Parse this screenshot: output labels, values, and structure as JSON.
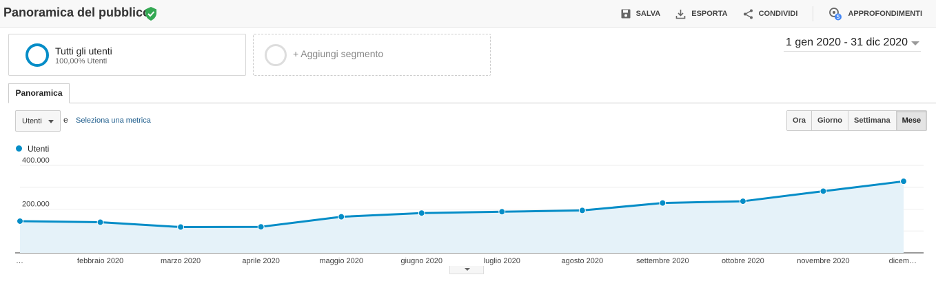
{
  "header": {
    "title": "Panoramica del pubblico",
    "actions": {
      "save": "SALVA",
      "export": "ESPORTA",
      "share": "CONDIVIDI",
      "insights": "APPROFONDIMENTI",
      "insights_badge": "5"
    }
  },
  "segments": {
    "active_name": "Tutti gli utenti",
    "active_pct": "100,00% Utenti",
    "add_label": "+ Aggiungi segmento"
  },
  "date_range": "1 gen 2020 - 31 dic 2020",
  "tabs": [
    "Panoramica"
  ],
  "metric": {
    "selected": "Utenti",
    "conjunction": "e",
    "select_link": "Seleziona una metrica"
  },
  "granularity": {
    "options": [
      "Ora",
      "Giorno",
      "Settimana",
      "Mese"
    ],
    "active": "Mese"
  },
  "colors": {
    "accent": "#058dc7",
    "area": "#e5f2f9",
    "verified": "#34a853"
  },
  "chart_data": {
    "type": "line",
    "series": [
      {
        "name": "Utenti",
        "values": [
          145000,
          140000,
          118000,
          119000,
          165000,
          182000,
          188000,
          194000,
          228000,
          236000,
          282000,
          327000
        ]
      }
    ],
    "categories": [
      "…",
      "febbraio 2020",
      "marzo 2020",
      "aprile 2020",
      "maggio 2020",
      "giugno 2020",
      "luglio 2020",
      "agosto 2020",
      "settembre 2020",
      "ottobre 2020",
      "novembre 2020",
      "dicem…"
    ],
    "y_ticks": [
      "400.000",
      "200.000"
    ],
    "ylim": [
      0,
      400000
    ],
    "grid": true,
    "area_fill": true,
    "legend": "top-left"
  }
}
